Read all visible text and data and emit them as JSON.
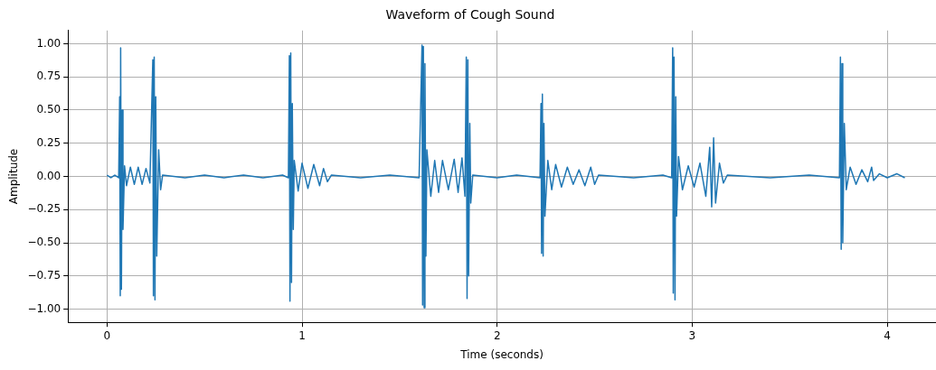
{
  "chart_data": {
    "type": "line",
    "title": "Waveform of Cough Sound",
    "xlabel": "Time (seconds)",
    "ylabel": "Amplitude",
    "x": [
      0,
      0.02,
      0.04,
      0.06,
      0.065,
      0.068,
      0.07,
      0.074,
      0.078,
      0.082,
      0.09,
      0.1,
      0.12,
      0.14,
      0.16,
      0.18,
      0.2,
      0.22,
      0.235,
      0.238,
      0.242,
      0.246,
      0.25,
      0.255,
      0.265,
      0.275,
      0.285,
      0.4,
      0.5,
      0.6,
      0.7,
      0.8,
      0.9,
      0.93,
      0.935,
      0.938,
      0.942,
      0.946,
      0.95,
      0.955,
      0.96,
      0.98,
      1.0,
      1.03,
      1.06,
      1.09,
      1.11,
      1.13,
      1.15,
      1.3,
      1.45,
      1.6,
      1.615,
      1.618,
      1.622,
      1.626,
      1.63,
      1.635,
      1.64,
      1.66,
      1.68,
      1.7,
      1.72,
      1.75,
      1.78,
      1.8,
      1.82,
      1.835,
      1.842,
      1.846,
      1.85,
      1.854,
      1.86,
      1.865,
      1.875,
      2.0,
      2.1,
      2.22,
      2.225,
      2.228,
      2.232,
      2.236,
      2.24,
      2.245,
      2.26,
      2.28,
      2.3,
      2.33,
      2.36,
      2.39,
      2.42,
      2.45,
      2.48,
      2.5,
      2.52,
      2.7,
      2.85,
      2.895,
      2.9,
      2.903,
      2.907,
      2.912,
      2.916,
      2.92,
      2.93,
      2.95,
      2.98,
      3.01,
      3.04,
      3.07,
      3.09,
      3.1,
      3.11,
      3.12,
      3.14,
      3.16,
      3.18,
      3.4,
      3.6,
      3.755,
      3.76,
      3.764,
      3.768,
      3.772,
      3.78,
      3.79,
      3.81,
      3.84,
      3.87,
      3.9,
      3.92,
      3.93,
      3.96,
      4.0,
      4.05,
      4.09
    ],
    "series": [
      {
        "color": "#1f77b4",
        "values": [
          0.01,
          -0.01,
          0.01,
          -0.01,
          0.6,
          -0.9,
          0.97,
          -0.85,
          0.5,
          -0.4,
          0.08,
          -0.07,
          0.07,
          -0.06,
          0.07,
          -0.06,
          0.06,
          -0.05,
          0.88,
          -0.9,
          0.9,
          -0.93,
          0.6,
          -0.6,
          0.2,
          -0.1,
          0.01,
          -0.01,
          0.01,
          -0.01,
          0.01,
          -0.01,
          0.01,
          -0.01,
          0.91,
          -0.94,
          0.93,
          -0.8,
          0.55,
          -0.4,
          0.12,
          -0.11,
          0.1,
          -0.09,
          0.09,
          -0.07,
          0.06,
          -0.04,
          0.01,
          -0.01,
          0.01,
          -0.01,
          0.99,
          -0.97,
          0.98,
          -0.99,
          0.85,
          -0.6,
          0.2,
          -0.15,
          0.12,
          -0.12,
          0.12,
          -0.1,
          0.13,
          -0.12,
          0.14,
          -0.15,
          0.9,
          -0.92,
          0.88,
          -0.75,
          0.4,
          -0.2,
          0.01,
          -0.01,
          0.01,
          -0.01,
          0.55,
          -0.58,
          0.62,
          -0.6,
          0.4,
          -0.3,
          0.12,
          -0.1,
          0.09,
          -0.08,
          0.07,
          -0.06,
          0.05,
          -0.07,
          0.07,
          -0.06,
          0.01,
          -0.01,
          0.01,
          -0.01,
          0.97,
          -0.88,
          0.9,
          -0.93,
          0.6,
          -0.3,
          0.15,
          -0.1,
          0.08,
          -0.08,
          0.1,
          -0.15,
          0.22,
          -0.23,
          0.29,
          -0.2,
          0.1,
          -0.05,
          0.01,
          -0.01,
          0.01,
          -0.01,
          0.9,
          -0.55,
          0.85,
          -0.5,
          0.4,
          -0.1,
          0.07,
          -0.06,
          0.05,
          -0.04,
          0.07,
          -0.03,
          0.02,
          -0.01,
          0.02,
          -0.01
        ]
      }
    ],
    "xlim": [
      -0.2,
      4.25
    ],
    "xticks": [
      0,
      1,
      2,
      3,
      4
    ],
    "ylim": [
      -1.1,
      1.1
    ],
    "yticks": [
      {
        "value": -1,
        "label": "−1.00"
      },
      {
        "value": -0.75,
        "label": "−0.75"
      },
      {
        "value": -0.5,
        "label": "−0.50"
      },
      {
        "value": -0.25,
        "label": "−0.25"
      },
      {
        "value": 0,
        "label": "0.00"
      },
      {
        "value": 0.25,
        "label": "0.25"
      },
      {
        "value": 0.5,
        "label": "0.50"
      },
      {
        "value": 0.75,
        "label": "0.75"
      },
      {
        "value": 1,
        "label": "1.00"
      }
    ],
    "grid": true,
    "legend": false,
    "marker": "none",
    "line_style": "solid"
  }
}
